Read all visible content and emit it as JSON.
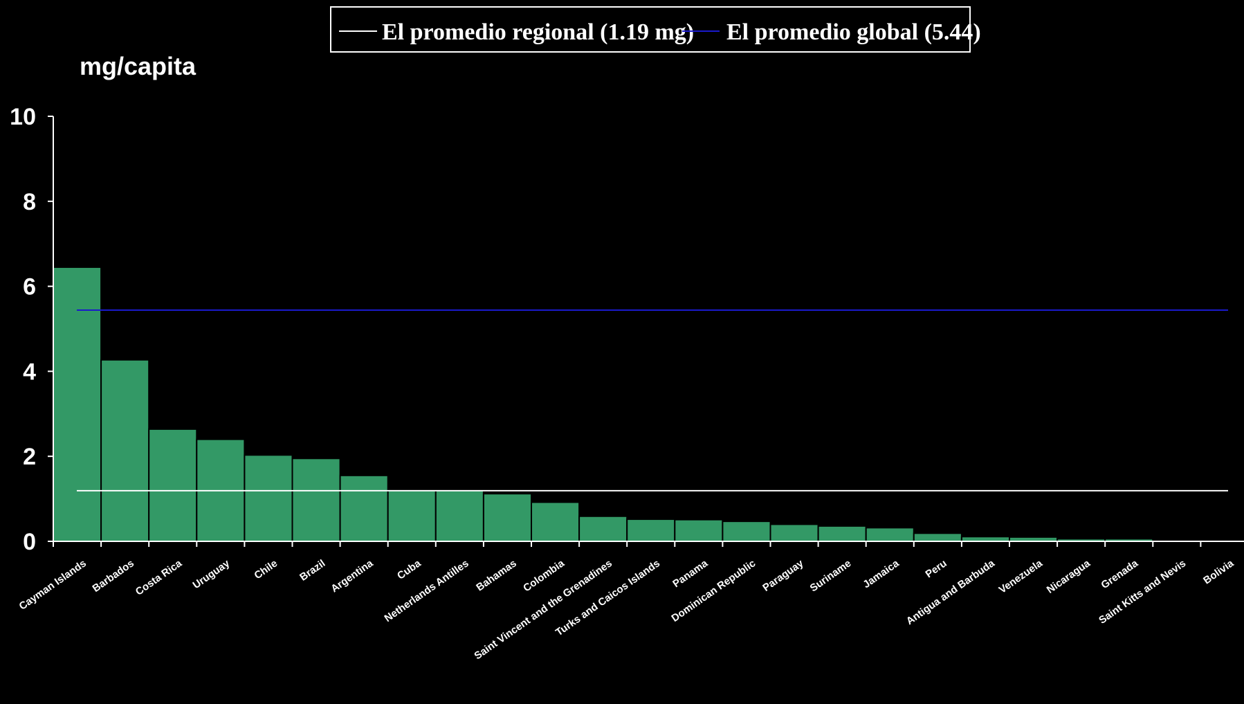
{
  "chart_data": {
    "type": "bar",
    "ylabel": "mg/capita",
    "ylim": [
      0,
      10
    ],
    "yticks": [
      "0",
      "2",
      "4",
      "6",
      "8",
      "10"
    ],
    "categories": [
      "Cayman Islands",
      "Barbados",
      "Costa Rica",
      "Uruguay",
      "Chile",
      "Brazil",
      "Argentina",
      "Cuba",
      "Netherlands Antilles",
      "Bahamas",
      "Colombia",
      "Saint Vincent and the Grenadines",
      "Turks and Caicos Islands",
      "Panama",
      "Dominican Republic",
      "Paraguay",
      "Suriname",
      "Jamaica",
      "Peru",
      "Antigua and Barbuda",
      "Venezuela",
      "Nicaragua",
      "Grenada",
      "Saint Kitts and Nevis",
      "Bolivia"
    ],
    "values": [
      6.45,
      4.27,
      2.64,
      2.4,
      2.03,
      1.95,
      1.55,
      1.2,
      1.2,
      1.12,
      0.92,
      0.59,
      0.52,
      0.51,
      0.47,
      0.4,
      0.36,
      0.32,
      0.19,
      0.11,
      0.1,
      0.06,
      0.06,
      0.0,
      0.0
    ],
    "reference_lines": [
      {
        "name": "El promedio regional (1.19 mg)",
        "value": 1.19,
        "color": "#ffffff"
      },
      {
        "name": "El promedio global (5.44)",
        "value": 5.44,
        "color": "#1a1acc"
      }
    ],
    "bar_color": "#339966",
    "legend_position": "top",
    "grid": false
  }
}
